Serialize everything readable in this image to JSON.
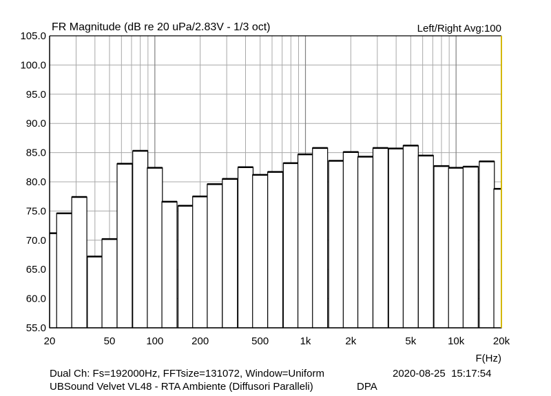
{
  "chart_data": {
    "type": "bar",
    "title": "FR Magnitude (dB re 20 uPa/2.83V - 1/3 oct)",
    "legend": "Left/Right  Avg:100",
    "xlabel": "F(Hz)",
    "xscale": "log",
    "xlim": [
      20,
      20000
    ],
    "ylim": [
      55.0,
      105.0
    ],
    "grid": true,
    "yticks": [
      "55.0",
      "60.0",
      "65.0",
      "70.0",
      "75.0",
      "80.0",
      "85.0",
      "90.0",
      "95.0",
      "100.0",
      "105.0"
    ],
    "xticks": [
      {
        "value": 20,
        "label": "20"
      },
      {
        "value": 50,
        "label": "50"
      },
      {
        "value": 100,
        "label": "100"
      },
      {
        "value": 200,
        "label": "200"
      },
      {
        "value": 500,
        "label": "500"
      },
      {
        "value": 1000,
        "label": "1k"
      },
      {
        "value": 2000,
        "label": "2k"
      },
      {
        "value": 5000,
        "label": "5k"
      },
      {
        "value": 10000,
        "label": "10k"
      },
      {
        "value": 20000,
        "label": "20k"
      }
    ],
    "categories": [
      20,
      25,
      31.5,
      40,
      50,
      63,
      80,
      100,
      125,
      160,
      200,
      250,
      315,
      400,
      500,
      630,
      800,
      1000,
      1250,
      1600,
      2000,
      2500,
      3150,
      4000,
      5000,
      6300,
      8000,
      10000,
      12500,
      16000,
      20000
    ],
    "values": [
      71.2,
      74.6,
      77.4,
      67.2,
      70.2,
      83.1,
      85.3,
      82.4,
      76.6,
      75.9,
      77.5,
      79.6,
      80.5,
      82.5,
      81.2,
      81.7,
      83.2,
      84.7,
      85.8,
      83.6,
      85.1,
      84.3,
      85.8,
      85.7,
      86.2,
      84.5,
      82.7,
      82.4,
      82.6,
      83.5,
      78.8
    ],
    "border_color": "#d4b800"
  },
  "footer": {
    "line1": "Dual Ch: Fs=192000Hz, FFTsize=131072, Window=Uniform",
    "timestamp": "2020-08-25  15:17:54",
    "line2": "UBSound Velvet VL48 - RTA Ambiente (Diffusori Paralleli)",
    "tag": "DPA"
  }
}
